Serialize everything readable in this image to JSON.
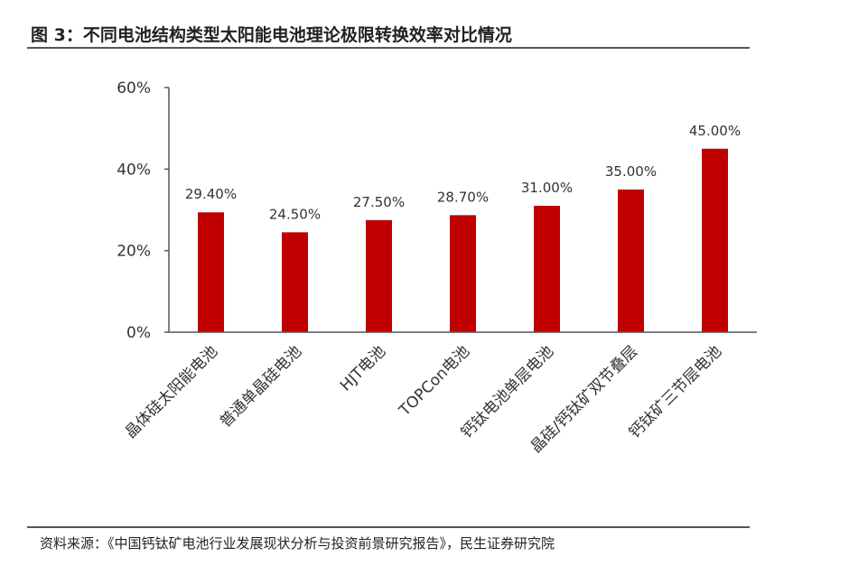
{
  "figure": {
    "title": "图 3：不同电池结构类型太阳能电池理论极限转换效率对比情况",
    "source": "资料来源：《中国钙钛矿电池行业发展现状分析与投资前景研究报告》，民生证券研究院"
  },
  "chart_data": {
    "type": "bar",
    "categories": [
      "晶体硅太阳能电池",
      "普通单晶硅电池",
      "HJT电池",
      "TOPCon电池",
      "钙钛电池单层电池",
      "晶硅/钙钛矿双节叠层",
      "钙钛矿三节层电池"
    ],
    "values": [
      29.4,
      24.5,
      27.5,
      28.7,
      31.0,
      35.0,
      45.0
    ],
    "data_labels": [
      "29.40%",
      "24.50%",
      "27.50%",
      "28.70%",
      "31.00%",
      "35.00%",
      "45.00%"
    ],
    "yticks": [
      0,
      20,
      40,
      60
    ],
    "ytick_labels": [
      "0%",
      "20%",
      "40%",
      "60%"
    ],
    "ylim": [
      0,
      60
    ],
    "grid": false,
    "legend": "none",
    "bar_color": "#c00000",
    "axis_color": "#555555"
  }
}
